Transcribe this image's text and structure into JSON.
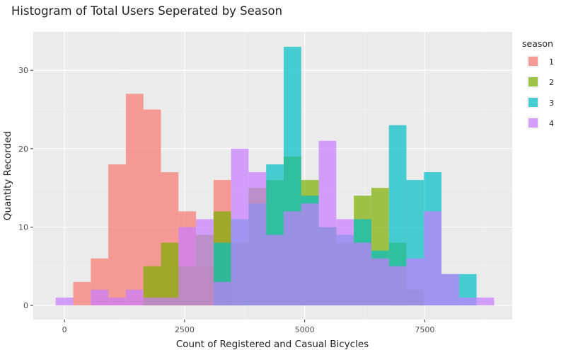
{
  "chart_data": {
    "type": "histogram",
    "title": "Histogram of Total Users Seperated by Season",
    "xlabel": "Count of Registered and Casual Bicycles",
    "ylabel": "Quantity Recorded",
    "xlim": [
      -650,
      9320
    ],
    "ylim": [
      -1.8,
      34.9
    ],
    "x_ticks": [
      0,
      2500,
      5000,
      7500
    ],
    "x_tick_labels": [
      "0",
      "2500",
      "5000",
      "7500"
    ],
    "y_ticks": [
      0,
      10,
      20,
      30
    ],
    "y_tick_labels": [
      "0",
      "10",
      "20",
      "30"
    ],
    "bin_width": 365,
    "bin_centers": [
      0,
      365,
      730,
      1095,
      1460,
      1825,
      2190,
      2555,
      2920,
      3285,
      3650,
      4015,
      4380,
      4745,
      5110,
      5475,
      5840,
      6205,
      6570,
      6935,
      7300,
      7665,
      8030,
      8395,
      8760
    ],
    "grid": true,
    "background": "#ebebeb",
    "opacity": 0.7,
    "legend": {
      "title": "season",
      "position": "right",
      "entries": [
        {
          "label": "1",
          "color": "#F8766D"
        },
        {
          "label": "2",
          "color": "#7CAE00"
        },
        {
          "label": "3",
          "color": "#00BFC4"
        },
        {
          "label": "4",
          "color": "#C77CFF"
        }
      ]
    },
    "series": [
      {
        "name": "1",
        "color": "#F8766D",
        "values": [
          0,
          3,
          6,
          18,
          27,
          25,
          17,
          12,
          5,
          16,
          0,
          0,
          0,
          0,
          0,
          0,
          0,
          0,
          0,
          0,
          0,
          0,
          0,
          0,
          0
        ]
      },
      {
        "name": "2",
        "color": "#7CAE00",
        "values": [
          0,
          0,
          0,
          0,
          0,
          5,
          8,
          5,
          9,
          12,
          8,
          15,
          16,
          19,
          16,
          10,
          8,
          14,
          15,
          8,
          2,
          0,
          0,
          0,
          0
        ]
      },
      {
        "name": "3",
        "color": "#00BFC4",
        "values": [
          0,
          0,
          0,
          0,
          0,
          0,
          0,
          0,
          0,
          8,
          11,
          13,
          18,
          33,
          14,
          10,
          9,
          11,
          7,
          23,
          16,
          17,
          4,
          4,
          0
        ]
      },
      {
        "name": "4",
        "color": "#C77CFF",
        "values": [
          1,
          0,
          2,
          1,
          2,
          1,
          1,
          10,
          11,
          3,
          20,
          17,
          9,
          12,
          13,
          21,
          11,
          8,
          6,
          5,
          6,
          12,
          4,
          1,
          1
        ]
      }
    ]
  }
}
